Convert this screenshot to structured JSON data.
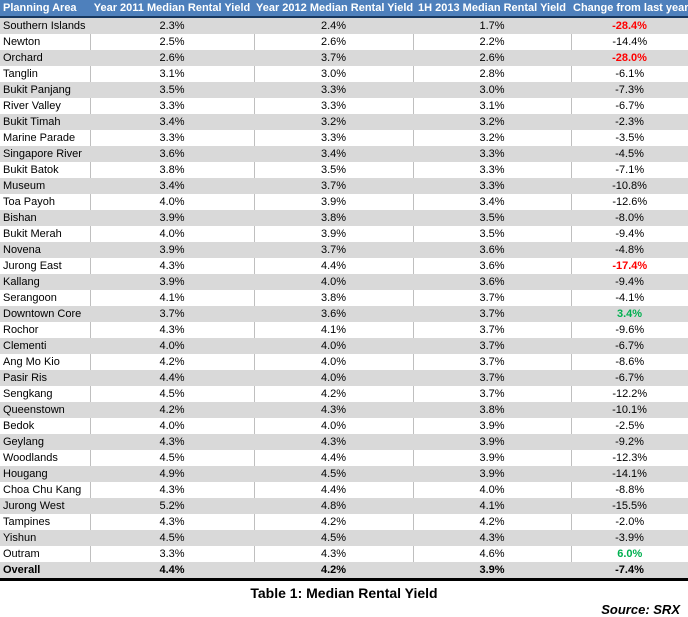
{
  "colors": {
    "header_bg": "#4E80BC",
    "header_text": "#FFFFFF",
    "band_gray": "#D9D9D9",
    "negative_highlight_red": "#FF0000",
    "positive_highlight_green": "#00B050",
    "header_border": "#17375E"
  },
  "chart_data": {
    "type": "table",
    "title": "Table 1: Median Rental Yield",
    "source": "Source: SRX",
    "columns": [
      "Planning Area",
      "Year 2011 Median Rental Yield",
      "Year 2012 Median Rental Yield",
      "1H 2013 Median Rental Yield",
      "Change from last year"
    ],
    "rows": [
      {
        "area": "Southern Islands",
        "y2011": "2.3%",
        "y2012": "2.4%",
        "h2013": "1.7%",
        "change": "-28.4%",
        "change_color": "red"
      },
      {
        "area": "Newton",
        "y2011": "2.5%",
        "y2012": "2.6%",
        "h2013": "2.2%",
        "change": "-14.4%"
      },
      {
        "area": "Orchard",
        "y2011": "2.6%",
        "y2012": "3.7%",
        "h2013": "2.6%",
        "change": "-28.0%",
        "change_color": "red"
      },
      {
        "area": "Tanglin",
        "y2011": "3.1%",
        "y2012": "3.0%",
        "h2013": "2.8%",
        "change": "-6.1%"
      },
      {
        "area": "Bukit Panjang",
        "y2011": "3.5%",
        "y2012": "3.3%",
        "h2013": "3.0%",
        "change": "-7.3%"
      },
      {
        "area": "River Valley",
        "y2011": "3.3%",
        "y2012": "3.3%",
        "h2013": "3.1%",
        "change": "-6.7%"
      },
      {
        "area": "Bukit Timah",
        "y2011": "3.4%",
        "y2012": "3.2%",
        "h2013": "3.2%",
        "change": "-2.3%"
      },
      {
        "area": "Marine Parade",
        "y2011": "3.3%",
        "y2012": "3.3%",
        "h2013": "3.2%",
        "change": "-3.5%"
      },
      {
        "area": "Singapore River",
        "y2011": "3.6%",
        "y2012": "3.4%",
        "h2013": "3.3%",
        "change": "-4.5%"
      },
      {
        "area": "Bukit Batok",
        "y2011": "3.8%",
        "y2012": "3.5%",
        "h2013": "3.3%",
        "change": "-7.1%"
      },
      {
        "area": "Museum",
        "y2011": "3.4%",
        "y2012": "3.7%",
        "h2013": "3.3%",
        "change": "-10.8%"
      },
      {
        "area": "Toa Payoh",
        "y2011": "4.0%",
        "y2012": "3.9%",
        "h2013": "3.4%",
        "change": "-12.6%"
      },
      {
        "area": "Bishan",
        "y2011": "3.9%",
        "y2012": "3.8%",
        "h2013": "3.5%",
        "change": "-8.0%"
      },
      {
        "area": "Bukit Merah",
        "y2011": "4.0%",
        "y2012": "3.9%",
        "h2013": "3.5%",
        "change": "-9.4%"
      },
      {
        "area": "Novena",
        "y2011": "3.9%",
        "y2012": "3.7%",
        "h2013": "3.6%",
        "change": "-4.8%"
      },
      {
        "area": "Jurong East",
        "y2011": "4.3%",
        "y2012": "4.4%",
        "h2013": "3.6%",
        "change": "-17.4%",
        "change_color": "red"
      },
      {
        "area": "Kallang",
        "y2011": "3.9%",
        "y2012": "4.0%",
        "h2013": "3.6%",
        "change": "-9.4%"
      },
      {
        "area": "Serangoon",
        "y2011": "4.1%",
        "y2012": "3.8%",
        "h2013": "3.7%",
        "change": "-4.1%"
      },
      {
        "area": "Downtown Core",
        "y2011": "3.7%",
        "y2012": "3.6%",
        "h2013": "3.7%",
        "change": "3.4%",
        "change_color": "green"
      },
      {
        "area": "Rochor",
        "y2011": "4.3%",
        "y2012": "4.1%",
        "h2013": "3.7%",
        "change": "-9.6%"
      },
      {
        "area": "Clementi",
        "y2011": "4.0%",
        "y2012": "4.0%",
        "h2013": "3.7%",
        "change": "-6.7%"
      },
      {
        "area": "Ang Mo Kio",
        "y2011": "4.2%",
        "y2012": "4.0%",
        "h2013": "3.7%",
        "change": "-8.6%"
      },
      {
        "area": "Pasir Ris",
        "y2011": "4.4%",
        "y2012": "4.0%",
        "h2013": "3.7%",
        "change": "-6.7%"
      },
      {
        "area": "Sengkang",
        "y2011": "4.5%",
        "y2012": "4.2%",
        "h2013": "3.7%",
        "change": "-12.2%"
      },
      {
        "area": "Queenstown",
        "y2011": "4.2%",
        "y2012": "4.3%",
        "h2013": "3.8%",
        "change": "-10.1%"
      },
      {
        "area": "Bedok",
        "y2011": "4.0%",
        "y2012": "4.0%",
        "h2013": "3.9%",
        "change": "-2.5%"
      },
      {
        "area": "Geylang",
        "y2011": "4.3%",
        "y2012": "4.3%",
        "h2013": "3.9%",
        "change": "-9.2%"
      },
      {
        "area": "Woodlands",
        "y2011": "4.5%",
        "y2012": "4.4%",
        "h2013": "3.9%",
        "change": "-12.3%"
      },
      {
        "area": "Hougang",
        "y2011": "4.9%",
        "y2012": "4.5%",
        "h2013": "3.9%",
        "change": "-14.1%"
      },
      {
        "area": "Choa Chu Kang",
        "y2011": "4.3%",
        "y2012": "4.4%",
        "h2013": "4.0%",
        "change": "-8.8%"
      },
      {
        "area": "Jurong West",
        "y2011": "5.2%",
        "y2012": "4.8%",
        "h2013": "4.1%",
        "change": "-15.5%"
      },
      {
        "area": "Tampines",
        "y2011": "4.3%",
        "y2012": "4.2%",
        "h2013": "4.2%",
        "change": "-2.0%"
      },
      {
        "area": "Yishun",
        "y2011": "4.5%",
        "y2012": "4.5%",
        "h2013": "4.3%",
        "change": "-3.9%"
      },
      {
        "area": "Outram",
        "y2011": "3.3%",
        "y2012": "4.3%",
        "h2013": "4.6%",
        "change": "6.0%",
        "change_color": "green"
      },
      {
        "area": "Overall",
        "y2011": "4.4%",
        "y2012": "4.2%",
        "h2013": "3.9%",
        "change": "-7.4%",
        "overall": true
      }
    ]
  }
}
